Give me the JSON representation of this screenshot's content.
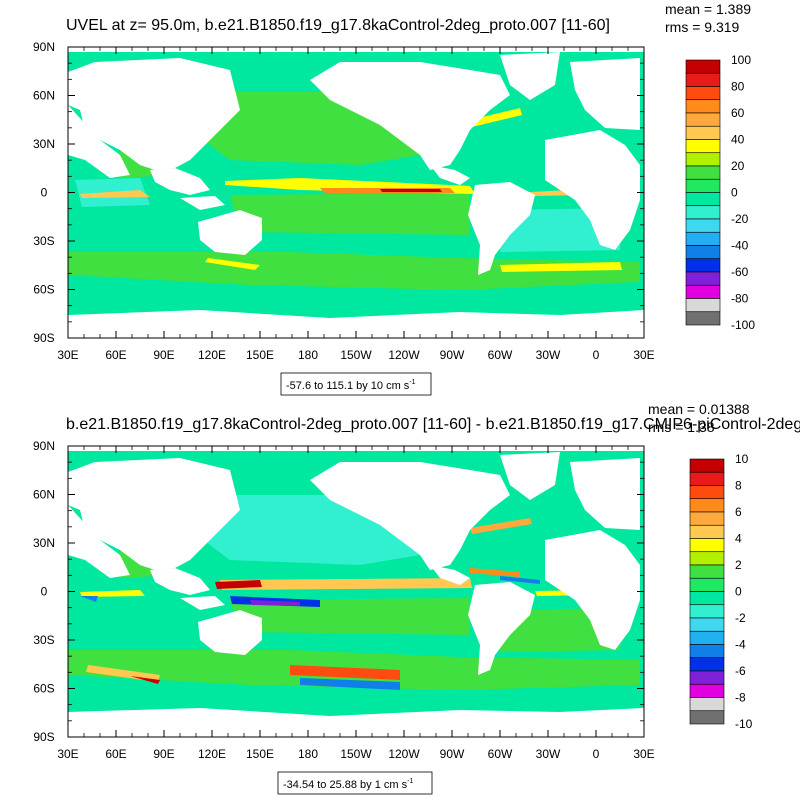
{
  "chart_data": [
    {
      "type": "heatmap",
      "title": "UVEL at z=  95.0m, b.e21.B1850.f19_g17.8kaControl-2deg_proto.007 [11-60]",
      "stats": {
        "mean": "mean = 1.389",
        "rms": "rms = 9.319"
      },
      "x_ticks": [
        "30E",
        "60E",
        "90E",
        "120E",
        "150E",
        "180",
        "150W",
        "120W",
        "90W",
        "60W",
        "30W",
        "0",
        "30E"
      ],
      "y_ticks": [
        "90N",
        "60N",
        "30N",
        "0",
        "30S",
        "60S",
        "90S"
      ],
      "range_label": "-57.6 to 115.1 by 10 cm s",
      "range_unit_sup": "-1",
      "colorbar_labels": [
        "100",
        "80",
        "60",
        "40",
        "20",
        "0",
        "-20",
        "-40",
        "-60",
        "-80",
        "-100"
      ],
      "colorbar_colors": [
        "#c40000",
        "#e81a1a",
        "#ff4a10",
        "#ff8c1a",
        "#ffa83d",
        "#ffc850",
        "#ffff00",
        "#b0f000",
        "#40e040",
        "#20e860",
        "#00e8a0",
        "#30f0d0",
        "#40d8f0",
        "#20b0f0",
        "#1080e8",
        "#0030e8",
        "#8020d8",
        "#e000e0",
        "#d8d8d8",
        "#707070"
      ]
    },
    {
      "type": "heatmap",
      "title": "b.e21.B1850.f19_g17.8kaControl-2deg_proto.007 [11-60] - b.e21.B1850.f19_g17.CMIP6-piControl-2deg",
      "stats": {
        "mean": "mean = 0.01388",
        "rms": "rms = 1.38"
      },
      "x_ticks": [
        "30E",
        "60E",
        "90E",
        "120E",
        "150E",
        "180",
        "150W",
        "120W",
        "90W",
        "60W",
        "30W",
        "0",
        "30E"
      ],
      "y_ticks": [
        "90N",
        "60N",
        "30N",
        "0",
        "30S",
        "60S",
        "90S"
      ],
      "range_label": "-34.54 to 25.88 by 1 cm s",
      "range_unit_sup": "-1",
      "colorbar_labels": [
        "10",
        "8",
        "6",
        "4",
        "2",
        "0",
        "-2",
        "-4",
        "-6",
        "-8",
        "-10"
      ],
      "colorbar_colors": [
        "#c40000",
        "#e81a1a",
        "#ff4a10",
        "#ff8c1a",
        "#ffa83d",
        "#ffc850",
        "#ffff00",
        "#b0f000",
        "#40e040",
        "#20e860",
        "#00e8a0",
        "#30f0d0",
        "#40d8f0",
        "#20b0f0",
        "#1080e8",
        "#0030e8",
        "#8020d8",
        "#e000e0",
        "#d8d8d8",
        "#707070"
      ]
    }
  ]
}
